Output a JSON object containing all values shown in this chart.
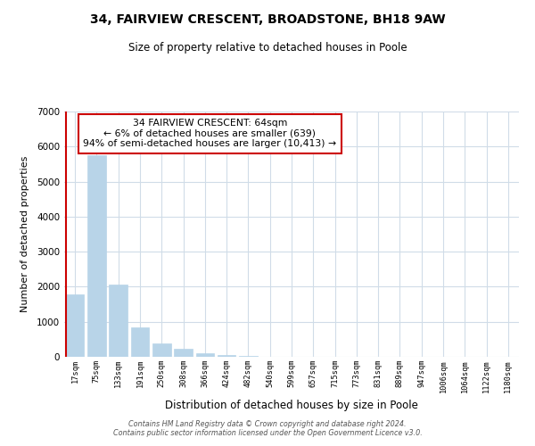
{
  "title1": "34, FAIRVIEW CRESCENT, BROADSTONE, BH18 9AW",
  "title2": "Size of property relative to detached houses in Poole",
  "xlabel": "Distribution of detached houses by size in Poole",
  "ylabel": "Number of detached properties",
  "bar_labels": [
    "17sqm",
    "75sqm",
    "133sqm",
    "191sqm",
    "250sqm",
    "308sqm",
    "366sqm",
    "424sqm",
    "482sqm",
    "540sqm",
    "599sqm",
    "657sqm",
    "715sqm",
    "773sqm",
    "831sqm",
    "889sqm",
    "947sqm",
    "1006sqm",
    "1064sqm",
    "1122sqm",
    "1180sqm"
  ],
  "bar_values": [
    1780,
    5750,
    2050,
    830,
    370,
    230,
    110,
    60,
    30,
    10,
    5,
    2,
    1,
    0,
    0,
    0,
    0,
    0,
    0,
    0,
    0
  ],
  "bar_color": "#b8d4e8",
  "bar_edge_color": "#b8d4e8",
  "ylim": [
    0,
    7000
  ],
  "yticks": [
    0,
    1000,
    2000,
    3000,
    4000,
    5000,
    6000,
    7000
  ],
  "annotation_box_text": "34 FAIRVIEW CRESCENT: 64sqm\n← 6% of detached houses are smaller (639)\n94% of semi-detached houses are larger (10,413) →",
  "annotation_box_color": "#ffffff",
  "annotation_box_edge_color": "#cc0000",
  "property_line_color": "#cc0000",
  "footnote": "Contains HM Land Registry data © Crown copyright and database right 2024.\nContains public sector information licensed under the Open Government Licence v3.0.",
  "bg_color": "#ffffff",
  "grid_color": "#d0dce8",
  "title_fontsize": 10,
  "subtitle_fontsize": 8.5
}
